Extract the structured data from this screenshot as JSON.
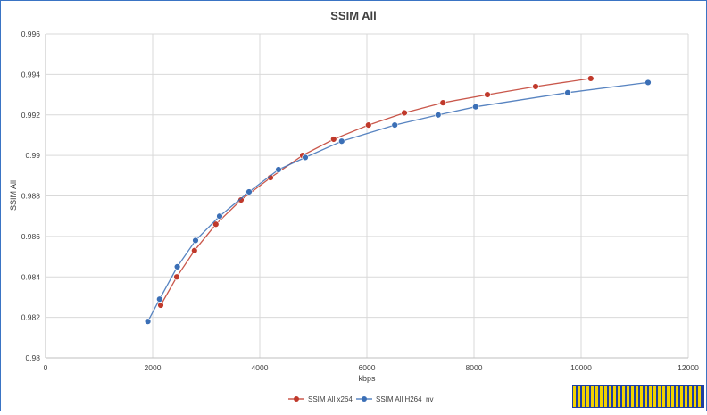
{
  "chart_data": {
    "type": "line",
    "title": "SSIM All",
    "xlabel": "kbps",
    "ylabel": "SSIM All",
    "xlim": [
      0,
      12000
    ],
    "ylim": [
      0.98,
      0.996
    ],
    "xticks": [
      0,
      2000,
      4000,
      6000,
      8000,
      10000,
      12000
    ],
    "yticks": [
      "0.98",
      "0.982",
      "0.984",
      "0.986",
      "0.988",
      "0.99",
      "0.992",
      "0.994",
      "0.996"
    ],
    "grid": true,
    "legend_position": "bottom",
    "series": [
      {
        "name": "SSIM All x264",
        "color": "#c0392b",
        "x": [
          2150,
          2450,
          2780,
          3180,
          3650,
          4200,
          4800,
          5380,
          6030,
          6700,
          7420,
          8250,
          9150,
          10180
        ],
        "y": [
          0.9826,
          0.984,
          0.9853,
          0.9866,
          0.9878,
          0.9889,
          0.99,
          0.9908,
          0.9915,
          0.9921,
          0.9926,
          0.993,
          0.9934,
          0.9938
        ]
      },
      {
        "name": "SSIM All H264_nv",
        "color": "#3b6fb6",
        "x": [
          1910,
          2130,
          2460,
          2800,
          3250,
          3800,
          4350,
          4850,
          5530,
          6520,
          7330,
          8030,
          9750,
          11250
        ],
        "y": [
          0.9818,
          0.9829,
          0.9845,
          0.9858,
          0.987,
          0.9882,
          0.9893,
          0.9899,
          0.9907,
          0.9915,
          0.992,
          0.9924,
          0.9931,
          0.9936
        ]
      }
    ]
  }
}
